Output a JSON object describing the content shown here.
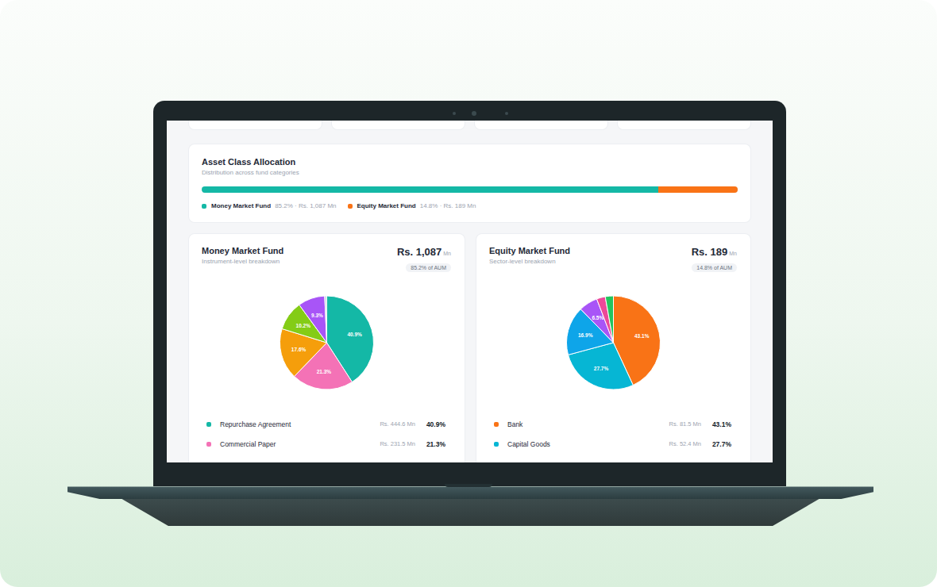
{
  "chart_data": [
    {
      "type": "bar",
      "orientation": "horizontal",
      "stacked": true,
      "title": "Asset Class Allocation",
      "subtitle": "Distribution across fund categories",
      "series": [
        {
          "name": "Money Market Fund",
          "color": "#14b8a6",
          "values": [
            85.2
          ],
          "value_labels": [
            "85.2% · Rs. 1,087 Mn"
          ]
        },
        {
          "name": "Equity Market Fund",
          "color": "#f97316",
          "values": [
            14.8
          ],
          "value_labels": [
            "14.8% · Rs. 189 Mn"
          ]
        }
      ],
      "xlim": [
        0,
        100
      ],
      "tick_labels": false,
      "grid": false,
      "legend": "bottom"
    },
    {
      "type": "pie",
      "title": "Money Market Fund",
      "subtitle": "Instrument-level breakdown",
      "annotations": [
        "Rs. 1,087",
        "Mn",
        "85.2% of AUM"
      ],
      "categories": [
        "Repurchase Agreement",
        "Commercial Paper",
        null,
        null,
        null,
        null
      ],
      "values": [
        40.9,
        21.3,
        17.6,
        10.2,
        9.3,
        0.7
      ],
      "value_labels": [
        "40.9%",
        "21.3%",
        "17.6%",
        "10.2%",
        "9.3%",
        null
      ],
      "amount_labels": [
        "Rs. 444.6 Mn",
        "Rs. 231.5 Mn",
        null,
        null,
        null,
        null
      ],
      "colors": [
        "#14b8a6",
        "#f472b6",
        "#f59e0b",
        "#84cc16",
        "#a855f7",
        "#cbd5e1"
      ],
      "data_labels": true,
      "legend": "bottom"
    },
    {
      "type": "pie",
      "title": "Equity Market Fund",
      "subtitle": "Sector-level breakdown",
      "annotations": [
        "Rs. 189",
        "Mn",
        "14.8% of AUM"
      ],
      "categories": [
        "Bank",
        "Capital Goods",
        null,
        null,
        null,
        null
      ],
      "values": [
        43.1,
        27.7,
        16.9,
        6.5,
        3.0,
        2.8
      ],
      "value_labels": [
        "43.1%",
        "27.7%",
        "16.9%",
        "6.5%",
        null,
        null
      ],
      "amount_labels": [
        "Rs. 81.5 Mn",
        "Rs. 52.4 Mn",
        null,
        null,
        null,
        null
      ],
      "colors": [
        "#f97316",
        "#06b6d4",
        "#0ea5e9",
        "#a855f7",
        "#ec4899",
        "#22c55e"
      ],
      "data_labels": true,
      "legend": "bottom"
    }
  ]
}
